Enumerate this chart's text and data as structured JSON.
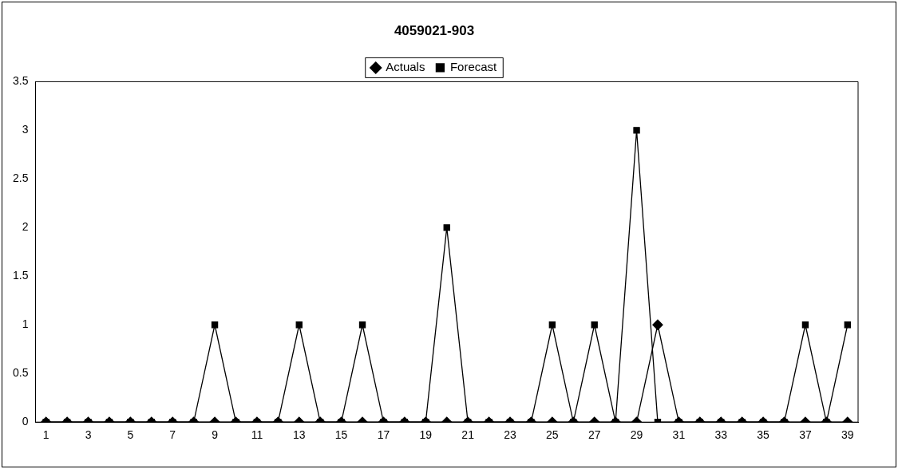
{
  "chart_data": {
    "type": "line",
    "title": "4059021-903",
    "x": [
      1,
      2,
      3,
      4,
      5,
      6,
      7,
      8,
      9,
      10,
      11,
      12,
      13,
      14,
      15,
      16,
      17,
      18,
      19,
      20,
      21,
      22,
      23,
      24,
      25,
      26,
      27,
      28,
      29,
      30,
      31,
      32,
      33,
      34,
      35,
      36,
      37,
      38,
      39
    ],
    "xlim": [
      0.5,
      39.5
    ],
    "xticks": [
      1,
      3,
      5,
      7,
      9,
      11,
      13,
      15,
      17,
      19,
      21,
      23,
      25,
      27,
      29,
      31,
      33,
      35,
      37,
      39
    ],
    "series": [
      {
        "name": "Actuals",
        "color": "#000000",
        "marker": "diamond",
        "values": [
          0,
          0,
          0,
          0,
          0,
          0,
          0,
          0,
          0,
          0,
          0,
          0,
          0,
          0,
          0,
          0,
          0,
          0,
          0,
          0,
          0,
          0,
          0,
          0,
          0,
          0,
          0,
          0,
          0,
          1,
          0,
          0,
          0,
          0,
          0,
          0,
          0,
          0,
          0
        ]
      },
      {
        "name": "Forecast",
        "color": "#000000",
        "marker": "square",
        "values": [
          0,
          0,
          0,
          0,
          0,
          0,
          0,
          0,
          1,
          0,
          0,
          0,
          1,
          0,
          0,
          1,
          0,
          0,
          0,
          2,
          0,
          0,
          0,
          0,
          1,
          0,
          1,
          0,
          3,
          0,
          0,
          0,
          0,
          0,
          0,
          0,
          1,
          0,
          1
        ]
      }
    ],
    "ylim": [
      0,
      3.5
    ],
    "yticks": [
      0,
      0.5,
      1,
      1.5,
      2,
      2.5,
      3,
      3.5
    ],
    "legend": "top",
    "line_style": "solid"
  }
}
